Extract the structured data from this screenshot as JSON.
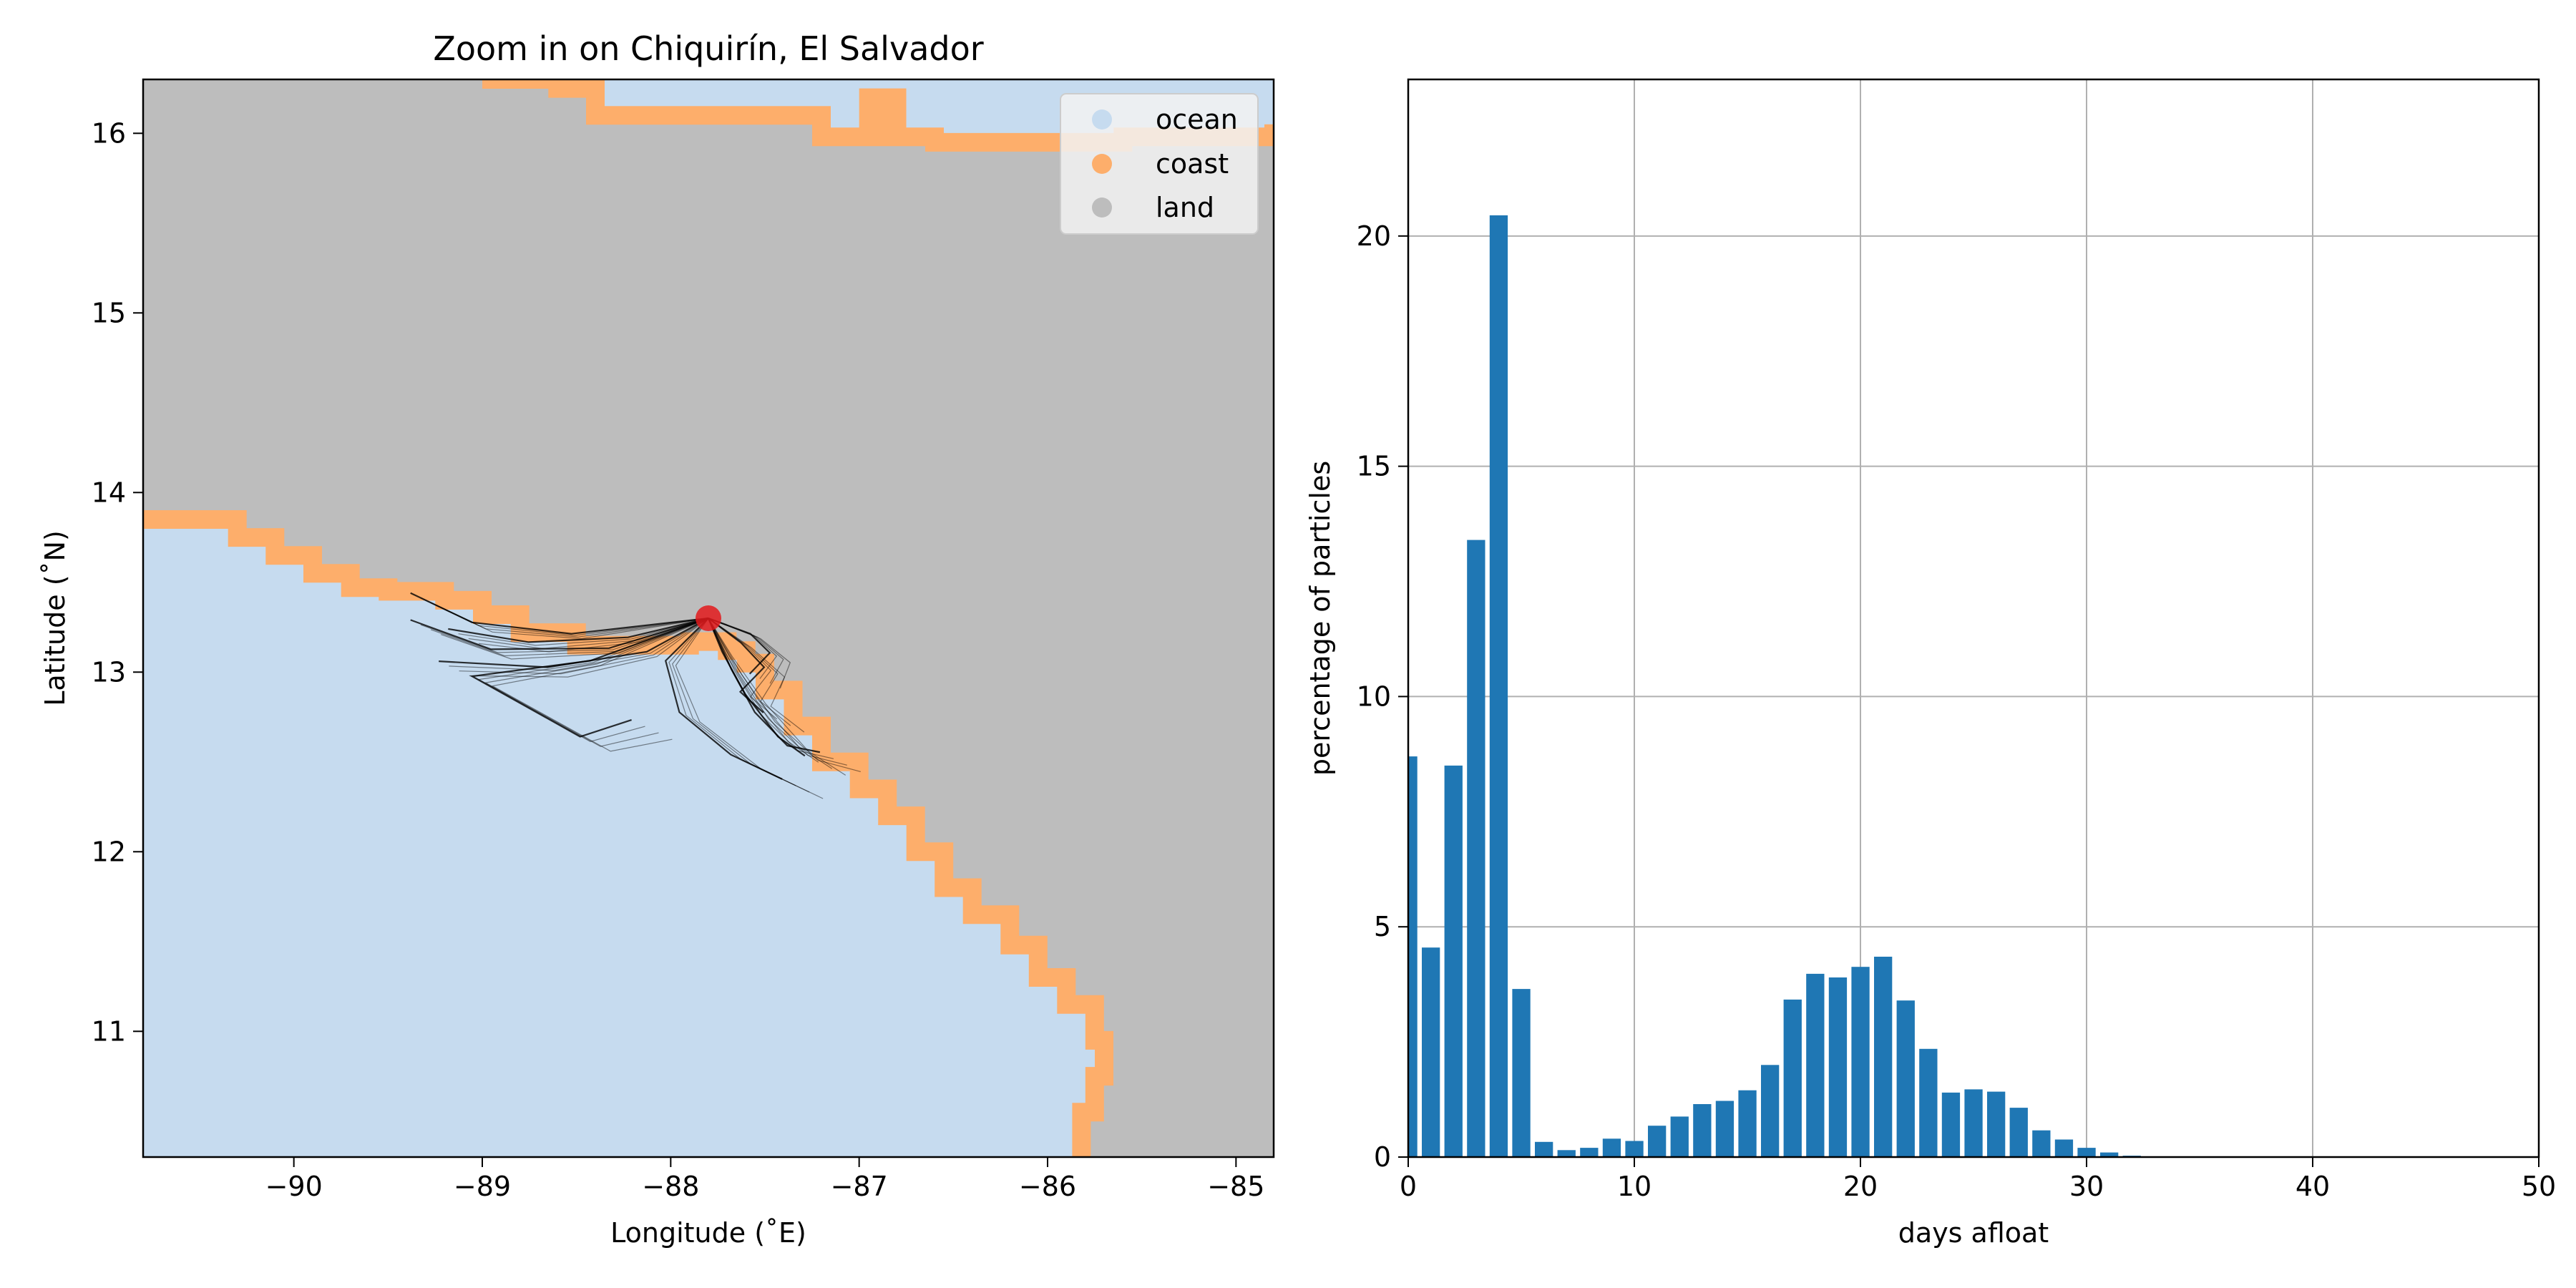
{
  "colors": {
    "ocean": "#c6dbef",
    "coast": "#fdae6b",
    "land": "#bdbdbd",
    "track": "#000000",
    "release": "#e31a1c",
    "bar": "#1f77b4",
    "grid": "#b0b0b0"
  },
  "chart_data": [
    {
      "type": "map",
      "title": "Zoom in on Chiquirín, El Salvador",
      "xlabel": "Longitude (˚E)",
      "ylabel": "Latitude (˚N)",
      "xlim": [
        -90.8,
        -84.8
      ],
      "ylim": [
        10.3,
        16.3
      ],
      "xticks": [
        -90,
        -89,
        -88,
        -87,
        -86,
        -85
      ],
      "xtick_labels": [
        "−90",
        "−89",
        "−88",
        "−87",
        "−86",
        "−85"
      ],
      "yticks": [
        11,
        12,
        13,
        14,
        15,
        16
      ],
      "ytick_labels": [
        "11",
        "12",
        "13",
        "14",
        "15",
        "16"
      ],
      "legend": {
        "placement": "top-right",
        "entries": [
          {
            "label": "ocean",
            "color_key": "ocean"
          },
          {
            "label": "coast",
            "color_key": "coast"
          },
          {
            "label": "land",
            "color_key": "land"
          }
        ]
      },
      "release_point": {
        "lon": -87.8,
        "lat": 13.3
      },
      "south_coast": [
        [
          -90.8,
          13.85
        ],
        [
          -90.5,
          13.85
        ],
        [
          -90.3,
          13.75
        ],
        [
          -90.1,
          13.65
        ],
        [
          -89.9,
          13.55
        ],
        [
          -89.7,
          13.47
        ],
        [
          -89.5,
          13.45
        ],
        [
          -89.2,
          13.4
        ],
        [
          -89.0,
          13.32
        ],
        [
          -88.8,
          13.22
        ],
        [
          -88.5,
          13.15
        ],
        [
          -88.2,
          13.15
        ],
        [
          -87.9,
          13.17
        ],
        [
          -87.7,
          13.12
        ],
        [
          -87.6,
          13.05
        ],
        [
          -87.5,
          12.9
        ],
        [
          -87.35,
          12.7
        ],
        [
          -87.2,
          12.5
        ],
        [
          -87.0,
          12.35
        ],
        [
          -86.85,
          12.2
        ],
        [
          -86.7,
          12.0
        ],
        [
          -86.55,
          11.8
        ],
        [
          -86.4,
          11.65
        ],
        [
          -86.2,
          11.48
        ],
        [
          -86.05,
          11.3
        ],
        [
          -85.9,
          11.15
        ],
        [
          -85.75,
          10.95
        ],
        [
          -85.7,
          10.75
        ],
        [
          -85.75,
          10.55
        ],
        [
          -85.82,
          10.3
        ]
      ],
      "north_coast": [
        [
          -89.0,
          16.3
        ],
        [
          -88.6,
          16.25
        ],
        [
          -88.4,
          16.1
        ],
        [
          -87.2,
          15.98
        ],
        [
          -86.6,
          15.95
        ],
        [
          -85.6,
          15.98
        ],
        [
          -84.8,
          16.05
        ]
      ]
    },
    {
      "type": "bar",
      "xlabel": "days afloat",
      "ylabel": "percentage of particles",
      "xlim": [
        0,
        50
      ],
      "ylim": [
        0,
        23.4
      ],
      "xticks": [
        0,
        10,
        20,
        30,
        40,
        50
      ],
      "yticks": [
        0,
        5,
        10,
        15,
        20
      ],
      "grid": true,
      "x": [
        0,
        1,
        2,
        3,
        4,
        5,
        6,
        7,
        8,
        9,
        10,
        11,
        12,
        13,
        14,
        15,
        16,
        17,
        18,
        19,
        20,
        21,
        22,
        23,
        24,
        25,
        26,
        27,
        28,
        29,
        30,
        31,
        32,
        33,
        34,
        35,
        36,
        37,
        38,
        39,
        40,
        41,
        42,
        43,
        44,
        45,
        46,
        47,
        48,
        49
      ],
      "values": [
        8.7,
        4.55,
        8.5,
        13.4,
        20.45,
        3.65,
        0.33,
        0.15,
        0.2,
        0.4,
        0.35,
        0.68,
        0.88,
        1.15,
        1.22,
        1.45,
        2.0,
        3.42,
        3.98,
        3.9,
        4.13,
        4.35,
        3.4,
        2.35,
        1.4,
        1.47,
        1.42,
        1.07,
        0.58,
        0.38,
        0.2,
        0.1,
        0.03,
        0.01,
        0.01,
        0.01,
        0.01,
        0.01,
        0.01,
        0.01,
        0.01,
        0.01,
        0.01,
        0.01,
        0.01,
        0.01,
        0.01,
        0.01,
        0.01,
        0.01
      ]
    }
  ]
}
